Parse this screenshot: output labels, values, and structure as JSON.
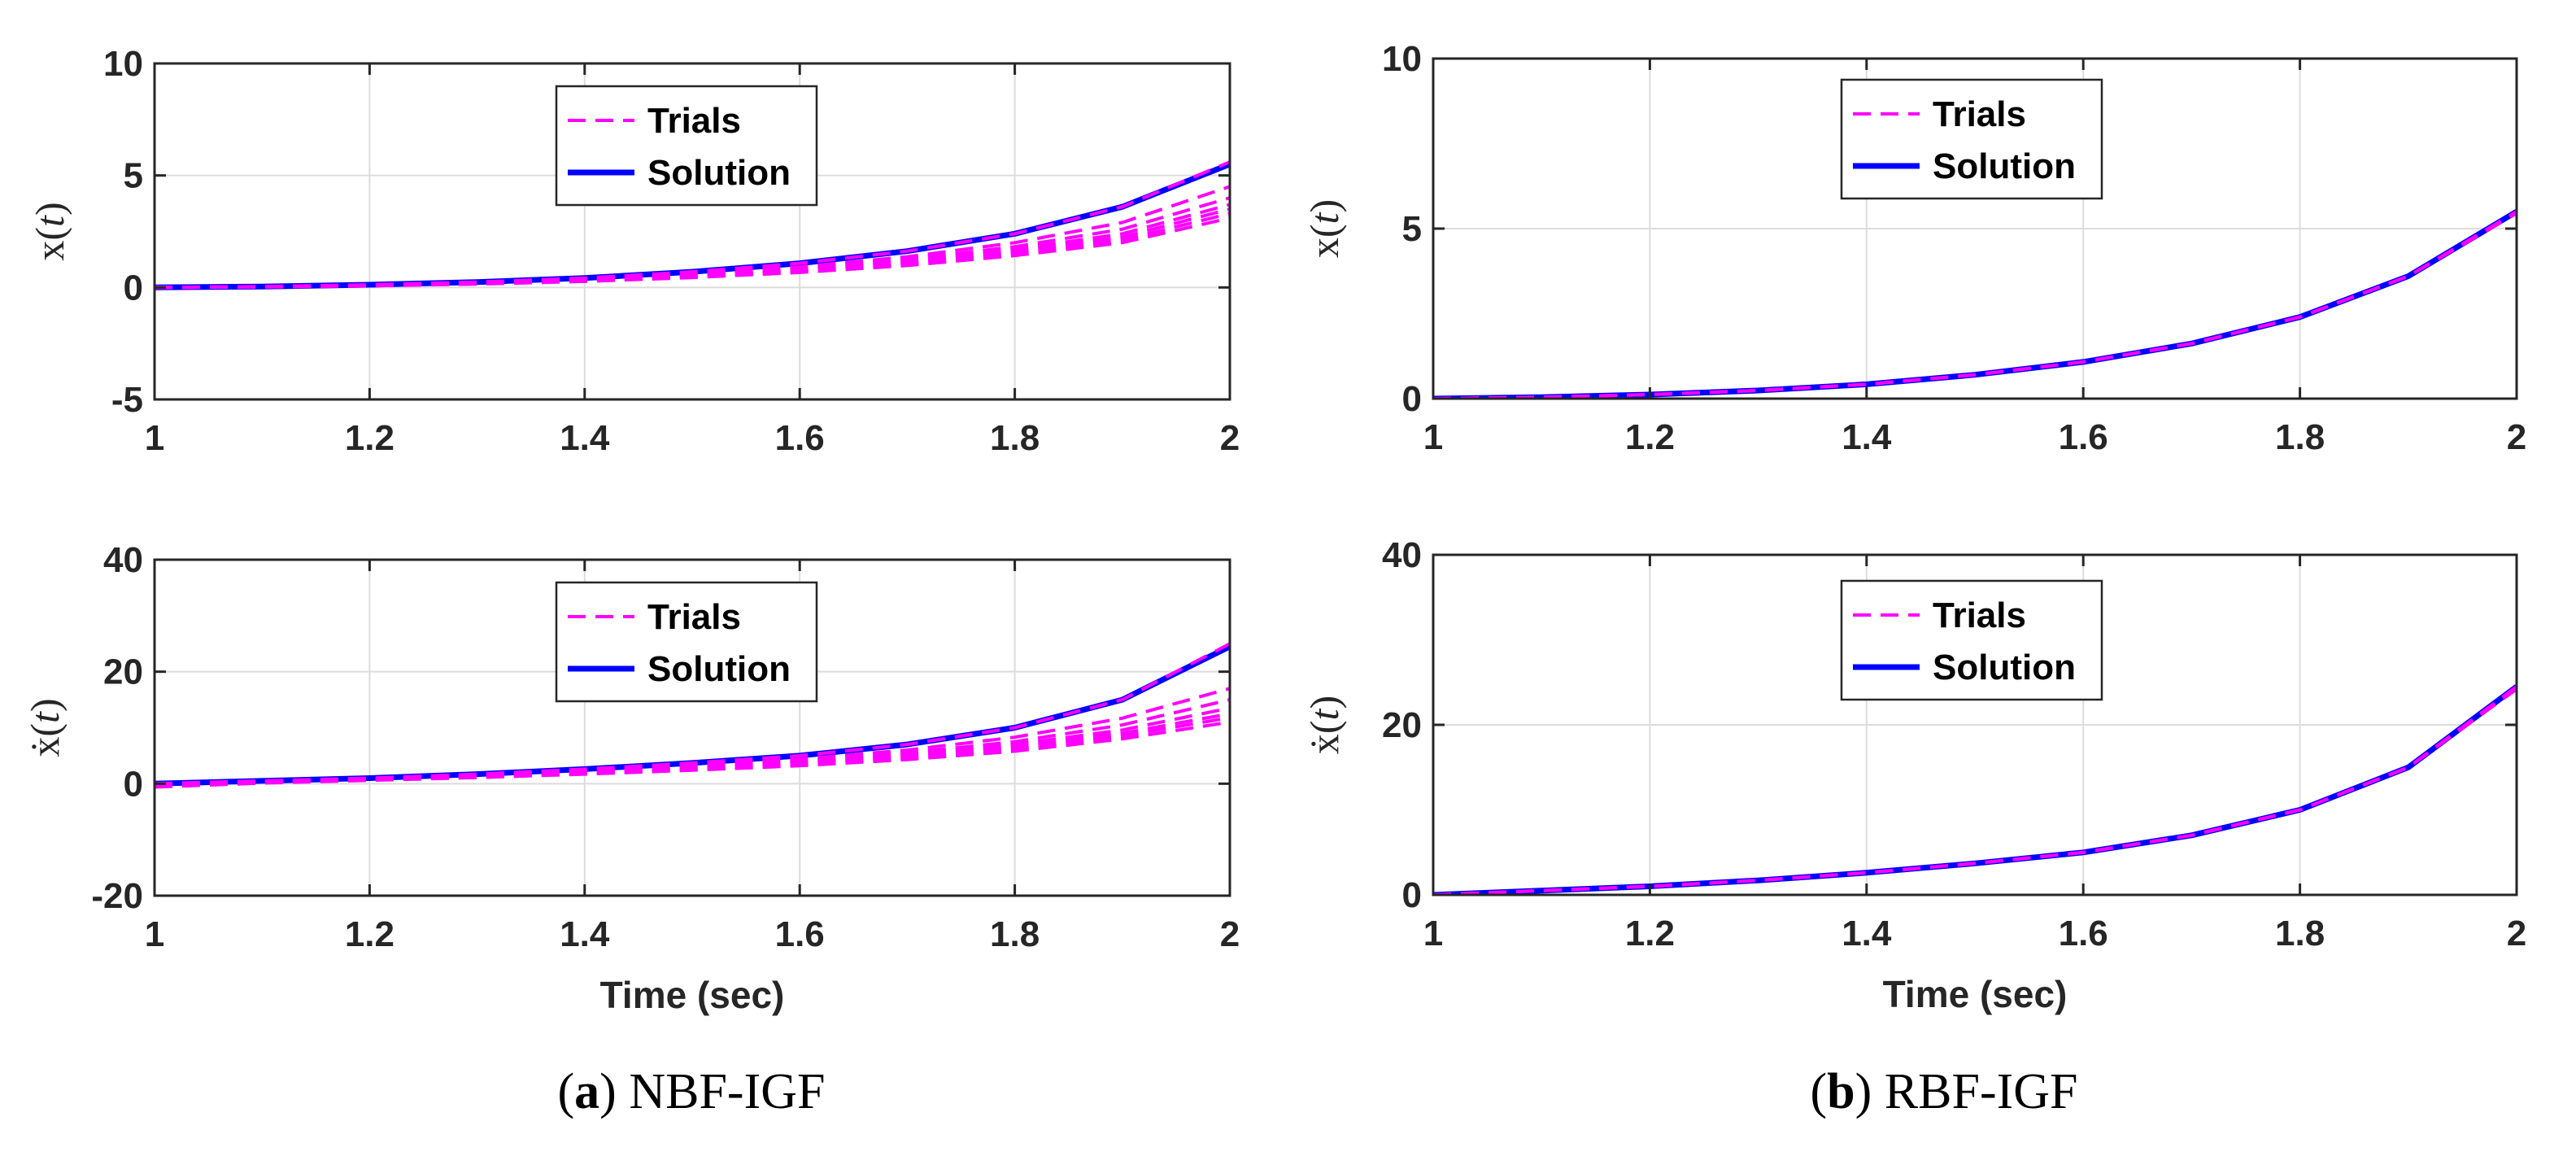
{
  "chart_data": [
    {
      "type": "line",
      "panel": "a",
      "title": "",
      "ylabel": "x(t)",
      "ylabel_parts": [
        "x(",
        "t",
        ")"
      ],
      "xlabel": "",
      "xlim": [
        1,
        2
      ],
      "ylim": [
        -5,
        10
      ],
      "xticks": [
        1,
        1.2,
        1.4,
        1.6,
        1.8,
        2
      ],
      "xtick_labels": [
        "1",
        "1.2",
        "1.4",
        "1.6",
        "1.8",
        "2"
      ],
      "yticks": [
        -5,
        0,
        5,
        10
      ],
      "ytick_labels": [
        "-5",
        "0",
        "5",
        "10"
      ],
      "grid": true,
      "legend_position": "top-center",
      "legend": [
        "Trials",
        "Solution"
      ],
      "series": [
        {
          "name": "Solution",
          "style": "solid",
          "color": "#0000ff",
          "x": [
            1,
            1.1,
            1.2,
            1.3,
            1.4,
            1.5,
            1.6,
            1.7,
            1.8,
            1.9,
            2
          ],
          "values": [
            0,
            0.04,
            0.12,
            0.24,
            0.42,
            0.7,
            1.08,
            1.62,
            2.4,
            3.6,
            5.5
          ]
        },
        {
          "name": "Trials",
          "style": "dashed",
          "color": "#ff00ff",
          "x": [
            1,
            1.1,
            1.2,
            1.3,
            1.4,
            1.5,
            1.6,
            1.7,
            1.8,
            1.9,
            2
          ],
          "values": [
            0,
            0.04,
            0.12,
            0.24,
            0.42,
            0.7,
            1.08,
            1.62,
            2.4,
            3.6,
            5.6
          ]
        },
        {
          "name": "Trials",
          "style": "dashed",
          "color": "#ff00ff",
          "x": [
            1,
            1.1,
            1.2,
            1.3,
            1.4,
            1.5,
            1.6,
            1.7,
            1.8,
            1.9,
            2
          ],
          "values": [
            0,
            0.03,
            0.1,
            0.21,
            0.37,
            0.6,
            0.92,
            1.37,
            2.0,
            2.9,
            4.5
          ]
        },
        {
          "name": "Trials",
          "style": "dashed",
          "color": "#ff00ff",
          "x": [
            1,
            1.1,
            1.2,
            1.3,
            1.4,
            1.5,
            1.6,
            1.7,
            1.8,
            1.9,
            2
          ],
          "values": [
            0,
            0.03,
            0.09,
            0.19,
            0.34,
            0.55,
            0.84,
            1.25,
            1.82,
            2.6,
            4.0
          ]
        },
        {
          "name": "Trials",
          "style": "dashed",
          "color": "#ff00ff",
          "x": [
            1,
            1.1,
            1.2,
            1.3,
            1.4,
            1.5,
            1.6,
            1.7,
            1.8,
            1.9,
            2
          ],
          "values": [
            0,
            0.03,
            0.09,
            0.18,
            0.32,
            0.52,
            0.79,
            1.17,
            1.7,
            2.4,
            3.7
          ]
        },
        {
          "name": "Trials",
          "style": "dashed",
          "color": "#ff00ff",
          "x": [
            1,
            1.1,
            1.2,
            1.3,
            1.4,
            1.5,
            1.6,
            1.7,
            1.8,
            1.9,
            2
          ],
          "values": [
            0,
            0.03,
            0.08,
            0.17,
            0.3,
            0.49,
            0.75,
            1.1,
            1.6,
            2.25,
            3.5
          ]
        },
        {
          "name": "Trials",
          "style": "dashed",
          "color": "#ff00ff",
          "x": [
            1,
            1.1,
            1.2,
            1.3,
            1.4,
            1.5,
            1.6,
            1.7,
            1.8,
            1.9,
            2
          ],
          "values": [
            0,
            0.03,
            0.08,
            0.16,
            0.28,
            0.46,
            0.71,
            1.04,
            1.5,
            2.12,
            3.3
          ]
        },
        {
          "name": "Trials",
          "style": "dashed",
          "color": "#ff00ff",
          "x": [
            1,
            1.1,
            1.2,
            1.3,
            1.4,
            1.5,
            1.6,
            1.7,
            1.8,
            1.9,
            2
          ],
          "values": [
            0,
            0.02,
            0.07,
            0.15,
            0.27,
            0.44,
            0.67,
            0.98,
            1.42,
            2.0,
            3.1
          ]
        }
      ]
    },
    {
      "type": "line",
      "panel": "a",
      "title": "",
      "ylabel": "ẋ(t)",
      "ylabel_parts": [
        "ẋ(",
        "t",
        ")"
      ],
      "xlabel": "Time (sec)",
      "xlim": [
        1,
        2
      ],
      "ylim": [
        -20,
        40
      ],
      "xticks": [
        1,
        1.2,
        1.4,
        1.6,
        1.8,
        2
      ],
      "xtick_labels": [
        "1",
        "1.2",
        "1.4",
        "1.6",
        "1.8",
        "2"
      ],
      "yticks": [
        -20,
        0,
        20,
        40
      ],
      "ytick_labels": [
        "-20",
        "0",
        "20",
        "40"
      ],
      "grid": true,
      "legend_position": "top-center",
      "legend": [
        "Trials",
        "Solution"
      ],
      "series": [
        {
          "name": "Solution",
          "style": "solid",
          "color": "#0000ff",
          "x": [
            1,
            1.1,
            1.2,
            1.3,
            1.4,
            1.5,
            1.6,
            1.7,
            1.8,
            1.9,
            2
          ],
          "values": [
            0,
            0.5,
            1.0,
            1.7,
            2.6,
            3.7,
            5.0,
            7.0,
            10.0,
            15.0,
            24.5
          ]
        },
        {
          "name": "Trials",
          "style": "dashed",
          "color": "#ff00ff",
          "x": [
            1,
            1.1,
            1.2,
            1.3,
            1.4,
            1.5,
            1.6,
            1.7,
            1.8,
            1.9,
            2
          ],
          "values": [
            0,
            0.5,
            1.0,
            1.7,
            2.6,
            3.7,
            5.0,
            7.0,
            10.0,
            15.0,
            25.0
          ]
        },
        {
          "name": "Trials",
          "style": "dashed",
          "color": "#ff00ff",
          "x": [
            1,
            1.1,
            1.2,
            1.3,
            1.4,
            1.5,
            1.6,
            1.7,
            1.8,
            1.9,
            2
          ],
          "values": [
            -0.2,
            0.4,
            0.9,
            1.5,
            2.3,
            3.2,
            4.4,
            6.0,
            8.3,
            11.7,
            17.0
          ]
        },
        {
          "name": "Trials",
          "style": "dashed",
          "color": "#ff00ff",
          "x": [
            1,
            1.1,
            1.2,
            1.3,
            1.4,
            1.5,
            1.6,
            1.7,
            1.8,
            1.9,
            2
          ],
          "values": [
            -0.3,
            0.3,
            0.8,
            1.4,
            2.1,
            3.0,
            4.0,
            5.5,
            7.5,
            10.5,
            15.0
          ]
        },
        {
          "name": "Trials",
          "style": "dashed",
          "color": "#ff00ff",
          "x": [
            1,
            1.1,
            1.2,
            1.3,
            1.4,
            1.5,
            1.6,
            1.7,
            1.8,
            1.9,
            2
          ],
          "values": [
            -0.4,
            0.3,
            0.8,
            1.3,
            2.0,
            2.8,
            3.8,
            5.2,
            7.0,
            9.6,
            13.5
          ]
        },
        {
          "name": "Trials",
          "style": "dashed",
          "color": "#ff00ff",
          "x": [
            1,
            1.1,
            1.2,
            1.3,
            1.4,
            1.5,
            1.6,
            1.7,
            1.8,
            1.9,
            2
          ],
          "values": [
            -0.5,
            0.2,
            0.7,
            1.2,
            1.9,
            2.7,
            3.6,
            4.9,
            6.6,
            9.0,
            12.5
          ]
        },
        {
          "name": "Trials",
          "style": "dashed",
          "color": "#ff00ff",
          "x": [
            1,
            1.1,
            1.2,
            1.3,
            1.4,
            1.5,
            1.6,
            1.7,
            1.8,
            1.9,
            2
          ],
          "values": [
            -0.5,
            0.2,
            0.7,
            1.2,
            1.8,
            2.5,
            3.4,
            4.6,
            6.2,
            8.5,
            11.8
          ]
        },
        {
          "name": "Trials",
          "style": "dashed",
          "color": "#ff00ff",
          "x": [
            1,
            1.1,
            1.2,
            1.3,
            1.4,
            1.5,
            1.6,
            1.7,
            1.8,
            1.9,
            2
          ],
          "values": [
            -0.6,
            0.1,
            0.6,
            1.1,
            1.7,
            2.4,
            3.2,
            4.3,
            5.8,
            8.0,
            11.0
          ]
        }
      ]
    },
    {
      "type": "line",
      "panel": "b",
      "title": "",
      "ylabel": "x(t)",
      "ylabel_parts": [
        "x(",
        "t",
        ")"
      ],
      "xlabel": "",
      "xlim": [
        1,
        2
      ],
      "ylim": [
        0,
        10
      ],
      "xticks": [
        1,
        1.2,
        1.4,
        1.6,
        1.8,
        2
      ],
      "xtick_labels": [
        "1",
        "1.2",
        "1.4",
        "1.6",
        "1.8",
        "2"
      ],
      "yticks": [
        0,
        5,
        10
      ],
      "ytick_labels": [
        "0",
        "5",
        "10"
      ],
      "grid": true,
      "legend_position": "top-center",
      "legend": [
        "Trials",
        "Solution"
      ],
      "series": [
        {
          "name": "Solution",
          "style": "solid",
          "color": "#0000ff",
          "x": [
            1,
            1.1,
            1.2,
            1.3,
            1.4,
            1.5,
            1.6,
            1.7,
            1.8,
            1.9,
            2
          ],
          "values": [
            0,
            0.04,
            0.12,
            0.24,
            0.42,
            0.7,
            1.08,
            1.62,
            2.4,
            3.6,
            5.5
          ]
        },
        {
          "name": "Trials",
          "style": "dashed",
          "color": "#ff00ff",
          "x": [
            1,
            1.1,
            1.2,
            1.3,
            1.4,
            1.5,
            1.6,
            1.7,
            1.8,
            1.9,
            2
          ],
          "values": [
            0,
            0.04,
            0.12,
            0.24,
            0.42,
            0.7,
            1.08,
            1.62,
            2.4,
            3.6,
            5.5
          ]
        },
        {
          "name": "Trials",
          "style": "dashed",
          "color": "#ff00ff",
          "x": [
            1,
            1.1,
            1.2,
            1.3,
            1.4,
            1.5,
            1.6,
            1.7,
            1.8,
            1.9,
            2
          ],
          "values": [
            0,
            0.04,
            0.12,
            0.24,
            0.42,
            0.7,
            1.08,
            1.62,
            2.4,
            3.6,
            5.45
          ]
        }
      ]
    },
    {
      "type": "line",
      "panel": "b",
      "title": "",
      "ylabel": "ẋ(t)",
      "ylabel_parts": [
        "ẋ(",
        "t",
        ")"
      ],
      "xlabel": "Time (sec)",
      "xlim": [
        1,
        2
      ],
      "ylim": [
        0,
        40
      ],
      "xticks": [
        1,
        1.2,
        1.4,
        1.6,
        1.8,
        2
      ],
      "xtick_labels": [
        "1",
        "1.2",
        "1.4",
        "1.6",
        "1.8",
        "2"
      ],
      "yticks": [
        0,
        20,
        40
      ],
      "ytick_labels": [
        "0",
        "20",
        "40"
      ],
      "grid": true,
      "legend_position": "top-center",
      "legend": [
        "Trials",
        "Solution"
      ],
      "series": [
        {
          "name": "Solution",
          "style": "solid",
          "color": "#0000ff",
          "x": [
            1,
            1.1,
            1.2,
            1.3,
            1.4,
            1.5,
            1.6,
            1.7,
            1.8,
            1.9,
            2
          ],
          "values": [
            0,
            0.5,
            1.0,
            1.7,
            2.6,
            3.7,
            5.0,
            7.0,
            10.0,
            15.0,
            24.5
          ]
        },
        {
          "name": "Trials",
          "style": "dashed",
          "color": "#ff00ff",
          "x": [
            1,
            1.1,
            1.2,
            1.3,
            1.4,
            1.5,
            1.6,
            1.7,
            1.8,
            1.9,
            2
          ],
          "values": [
            0,
            0.5,
            1.0,
            1.7,
            2.6,
            3.7,
            5.0,
            7.0,
            10.0,
            15.0,
            24.5
          ]
        },
        {
          "name": "Trials",
          "style": "dashed",
          "color": "#ff00ff",
          "x": [
            1,
            1.1,
            1.2,
            1.3,
            1.4,
            1.5,
            1.6,
            1.7,
            1.8,
            1.9,
            2
          ],
          "values": [
            0,
            0.5,
            1.0,
            1.7,
            2.6,
            3.7,
            5.0,
            7.0,
            10.0,
            15.0,
            24.2
          ]
        }
      ]
    }
  ],
  "captions": {
    "a": {
      "letter": "a",
      "label": "NBF-IGF"
    },
    "b": {
      "letter": "b",
      "label": "RBF-IGF"
    }
  },
  "colors": {
    "trials": "#ff00ff",
    "solution": "#0000ff",
    "grid": "#dcdcdc",
    "axes": "#262626"
  }
}
